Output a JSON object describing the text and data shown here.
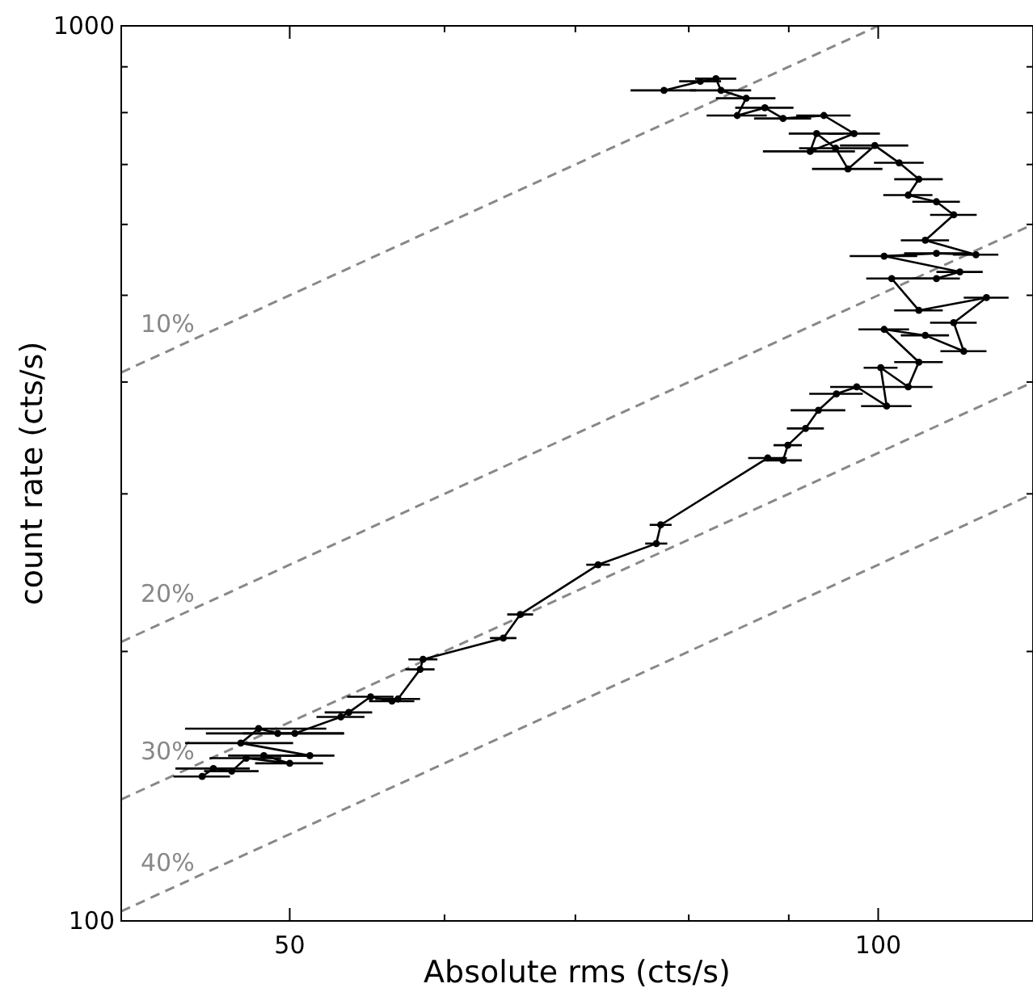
{
  "chart_data": {
    "type": "line",
    "xlabel": "Absolute rms (cts/s)",
    "ylabel": "count rate (cts/s)",
    "log": "xy",
    "xlim": [
      41,
      120
    ],
    "ylim": [
      100,
      1000
    ],
    "xticks": [
      50,
      {
        "value": 60,
        "label": null
      },
      {
        "value": 70,
        "label": null
      },
      {
        "value": 80,
        "label": null
      },
      {
        "value": 90,
        "label": null
      },
      100
    ],
    "yticks": [
      100,
      {
        "value": 200,
        "label": null
      },
      {
        "value": 300,
        "label": null
      },
      {
        "value": 400,
        "label": null
      },
      {
        "value": 500,
        "label": null
      },
      {
        "value": 600,
        "label": null
      },
      {
        "value": 700,
        "label": null
      },
      {
        "value": 800,
        "label": null
      },
      {
        "value": 900,
        "label": null
      },
      1000
    ],
    "grid": false,
    "series": [
      {
        "name": "10%",
        "color": "#888888",
        "line_style": "dashed",
        "marker": "none",
        "x": [
          41,
          100
        ],
        "values": [
          410,
          1000
        ]
      },
      {
        "name": "20%",
        "color": "#888888",
        "line_style": "dashed",
        "marker": "none",
        "x": [
          41,
          120
        ],
        "values": [
          205,
          600
        ]
      },
      {
        "name": "30%",
        "color": "#888888",
        "line_style": "dashed",
        "marker": "none",
        "x": [
          41,
          120
        ],
        "values": [
          136.7,
          400
        ]
      },
      {
        "name": "40%",
        "color": "#888888",
        "line_style": "dashed",
        "marker": "none",
        "x": [
          41,
          120
        ],
        "values": [
          102.5,
          300
        ]
      },
      {
        "color": "#000000",
        "line_style": "solid",
        "marker": "circle",
        "x": [
          45.1,
          45.7,
          46.7,
          47.5,
          50,
          48.5,
          51.2,
          47.2,
          48.2,
          49.3,
          50.3,
          53.1,
          53.6,
          55,
          56.4,
          56.8,
          58.3,
          58.5,
          64.3,
          65.6,
          71.9,
          77,
          77.4,
          87.8,
          89.4,
          89.9,
          91.8,
          93.2,
          95.2,
          97.5,
          101,
          100.3,
          103.6,
          104.9,
          100.7,
          105.7,
          110.6,
          109.3,
          113.6,
          104.9,
          101.6,
          107.1,
          110.1,
          100.7,
          107.1,
          112.2,
          105.7,
          109.3,
          107.1,
          103.6,
          104.9,
          102.5,
          99.6,
          96.5,
          95.1,
          93,
          92.3,
          97.2,
          93.8,
          89.4,
          87.5,
          84.7,
          85.6,
          83.1,
          82.6,
          81.1,
          77.7
        ],
        "values": [
          145,
          148,
          147,
          152,
          150,
          153,
          153,
          158,
          164,
          162,
          162,
          169,
          171,
          178,
          176,
          177,
          191,
          196,
          207,
          220,
          250,
          264,
          277,
          329,
          327,
          340,
          355,
          372,
          388,
          395,
          376,
          415,
          395,
          421,
          458,
          451,
          433,
          466,
          497,
          481,
          522,
          522,
          531,
          553,
          557,
          555,
          576,
          615,
          636,
          647,
          674,
          703,
          735,
          692,
          730,
          758,
          724,
          758,
          794,
          788,
          810,
          794,
          830,
          847,
          873,
          867,
          847
        ],
        "xerrors": [
          1.5,
          2,
          1.5,
          2,
          2,
          2,
          1.5,
          3,
          4,
          4,
          3,
          1.5,
          1.5,
          1.5,
          1.5,
          1.5,
          1,
          1,
          1,
          1,
          1,
          1,
          1,
          2,
          2,
          1.5,
          2,
          3,
          3,
          3,
          3,
          2,
          3,
          3,
          3,
          3,
          3,
          3,
          3,
          3,
          3,
          3,
          3,
          4,
          4,
          3,
          3,
          3,
          3,
          3,
          3,
          3,
          4,
          4,
          4,
          3,
          5,
          3,
          3,
          3,
          3,
          3,
          3,
          3,
          2,
          2,
          3
        ]
      }
    ]
  }
}
